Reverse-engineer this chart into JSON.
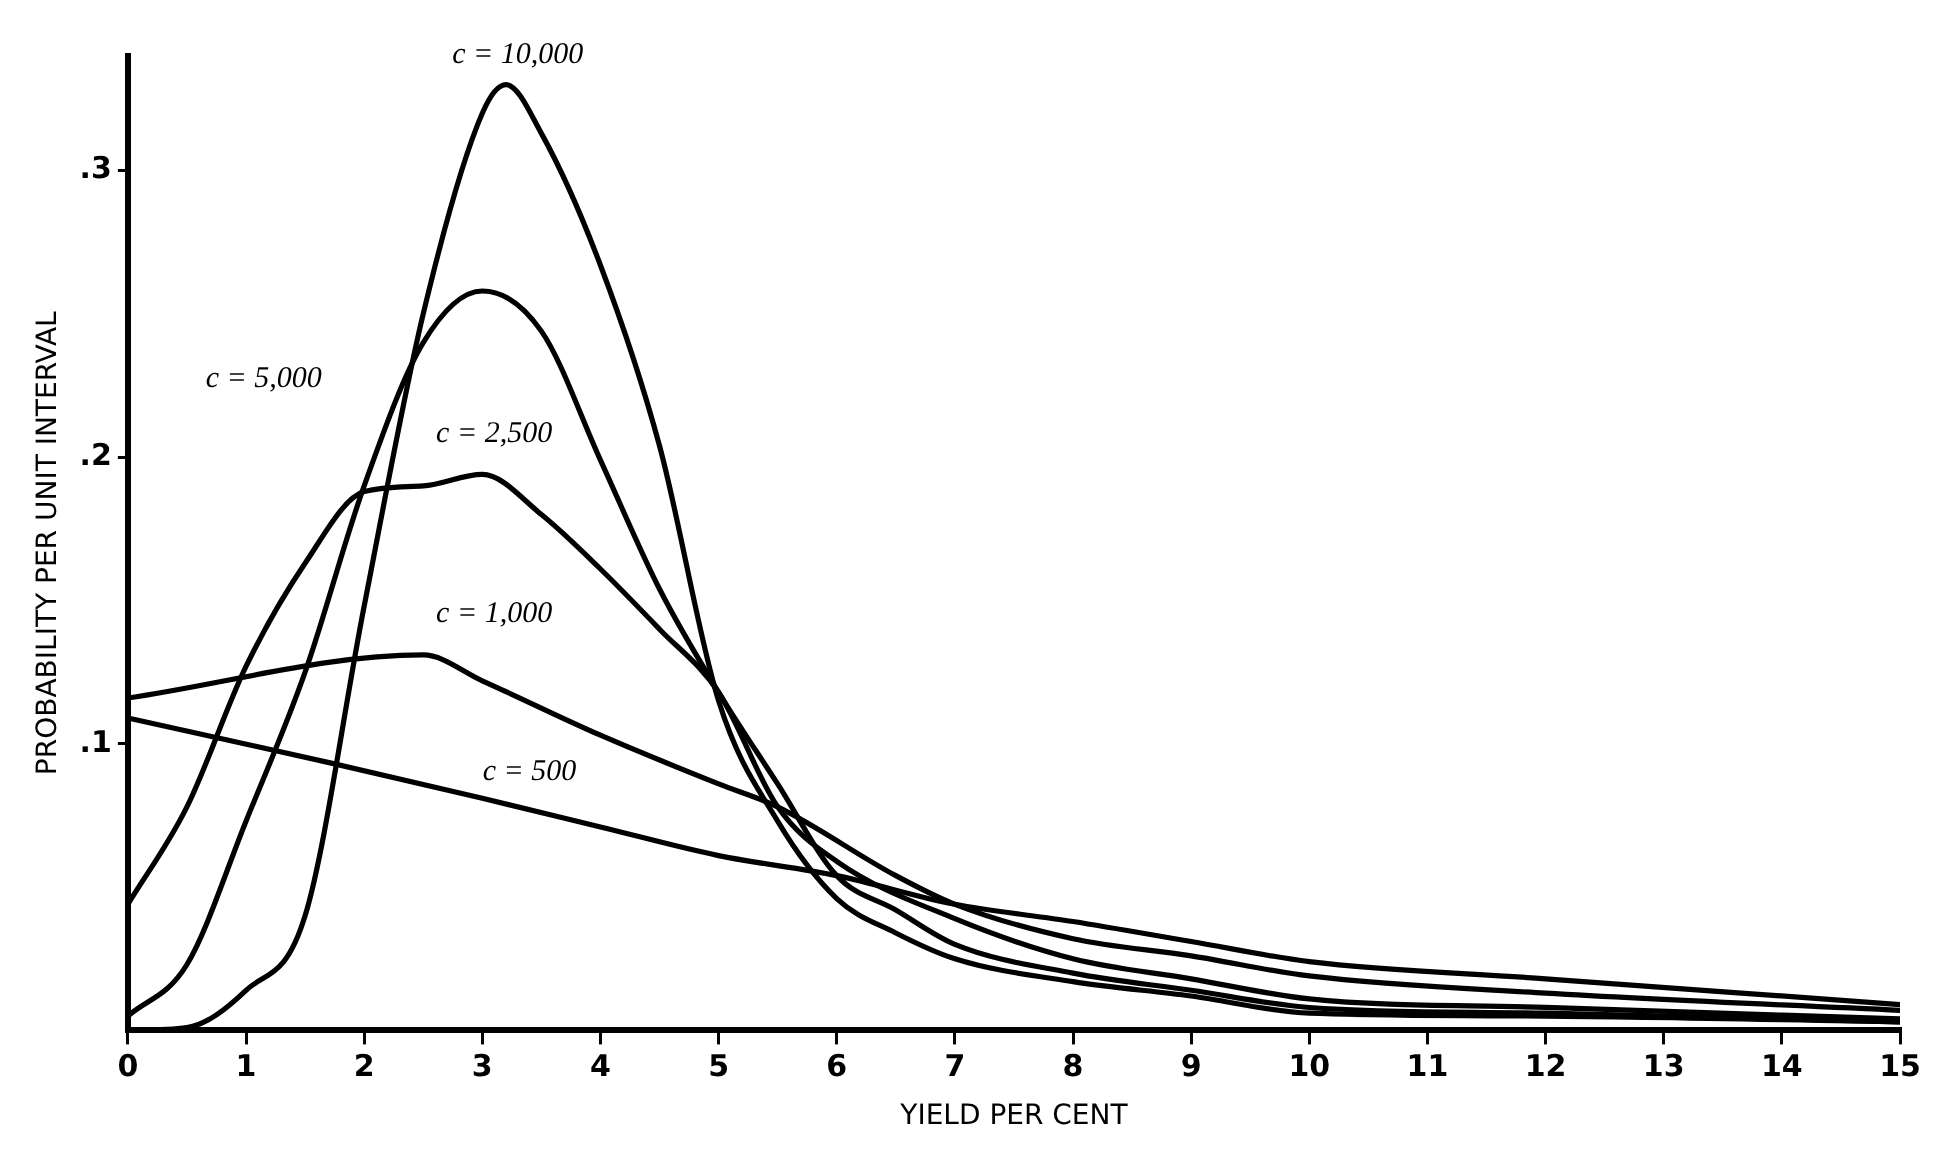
{
  "chart_data": {
    "type": "line",
    "xlabel": "YIELD PER CENT",
    "ylabel": "PROBABILITY PER UNIT INTERVAL",
    "xlim": [
      0,
      15
    ],
    "ylim": [
      0,
      0.34
    ],
    "xticks": [
      0,
      1,
      2,
      3,
      4,
      5,
      6,
      7,
      8,
      9,
      10,
      11,
      12,
      13,
      14,
      15
    ],
    "yticks": [
      {
        "value": 0.1,
        "label": ".1"
      },
      {
        "value": 0.2,
        "label": ".2"
      },
      {
        "value": 0.3,
        "label": ".3"
      }
    ],
    "grid": false,
    "legend": false,
    "marker": "none",
    "line_style": "solid",
    "series": [
      {
        "name": "c = 10,000",
        "color": "#000000",
        "x": [
          0,
          0.5,
          1,
          1.5,
          2,
          2.5,
          3,
          3.2,
          3.5,
          4,
          4.5,
          5,
          5.5,
          6,
          6.5,
          7,
          8,
          9,
          10,
          12,
          15
        ],
        "values": [
          0,
          0.001,
          0.014,
          0.04,
          0.148,
          0.25,
          0.32,
          0.33,
          0.313,
          0.267,
          0.204,
          0.115,
          0.073,
          0.046,
          0.034,
          0.025,
          0.017,
          0.012,
          0.006,
          0.005,
          0.003
        ]
      },
      {
        "name": "c = 5,000",
        "color": "#000000",
        "x": [
          0,
          0.5,
          1,
          1.5,
          2,
          2.5,
          3,
          3.5,
          4,
          4.5,
          5,
          5.5,
          6,
          6.5,
          7,
          8,
          9,
          10,
          12,
          15
        ],
        "values": [
          0.005,
          0.023,
          0.073,
          0.125,
          0.19,
          0.24,
          0.258,
          0.244,
          0.199,
          0.154,
          0.118,
          0.086,
          0.054,
          0.042,
          0.03,
          0.02,
          0.014,
          0.008,
          0.006,
          0.003
        ]
      },
      {
        "name": "c = 2,500",
        "color": "#000000",
        "x": [
          0,
          0.5,
          1,
          1.5,
          2,
          2.5,
          3,
          3.5,
          4,
          4.5,
          5,
          5.5,
          6,
          7,
          8,
          9,
          10,
          12,
          15
        ],
        "values": [
          0.044,
          0.078,
          0.127,
          0.163,
          0.188,
          0.19,
          0.194,
          0.18,
          0.161,
          0.14,
          0.118,
          0.078,
          0.059,
          0.039,
          0.025,
          0.018,
          0.011,
          0.008,
          0.004
        ]
      },
      {
        "name": "c = 1,000",
        "color": "#000000",
        "x": [
          0,
          2.5,
          3,
          4,
          5,
          5.5,
          6.5,
          7,
          8,
          9,
          10,
          12,
          15
        ],
        "values": [
          0.116,
          0.131,
          0.122,
          0.103,
          0.086,
          0.078,
          0.054,
          0.044,
          0.032,
          0.026,
          0.019,
          0.013,
          0.007
        ]
      },
      {
        "name": "c = 500",
        "color": "#000000",
        "x": [
          0,
          1.75,
          3,
          4,
          5,
          6,
          7,
          8,
          9,
          10,
          12,
          15
        ],
        "values": [
          0.109,
          0.093,
          0.081,
          0.071,
          0.061,
          0.054,
          0.044,
          0.038,
          0.031,
          0.024,
          0.018,
          0.009
        ]
      }
    ]
  }
}
